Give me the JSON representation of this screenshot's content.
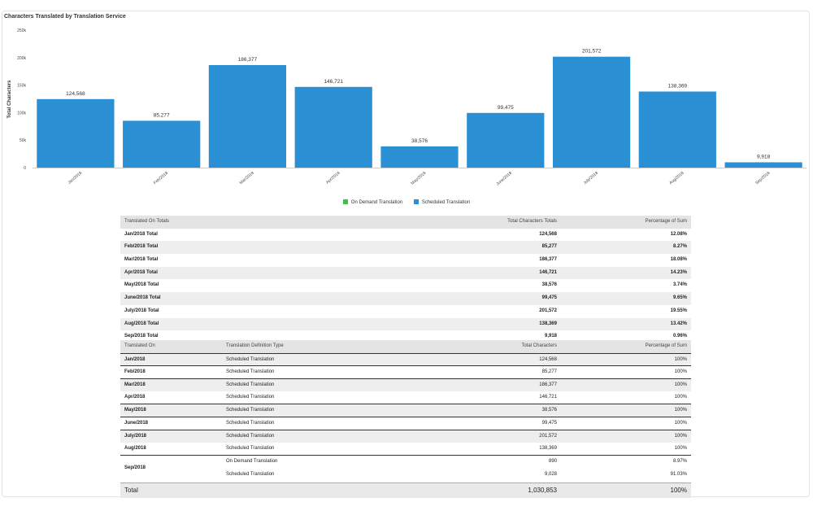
{
  "chart_data": {
    "type": "bar",
    "title": "Characters Translated by Translation Service",
    "ylabel": "Total Characters",
    "xlabel": "",
    "ylim": [
      0,
      250000
    ],
    "yticks": [
      "0",
      "50k",
      "100k",
      "150k",
      "200k",
      "250k"
    ],
    "categories": [
      "Jan/2018",
      "Feb/2018",
      "Mar/2018",
      "Apr/2018",
      "May/2018",
      "June/2018",
      "July/2018",
      "Aug/2018",
      "Sep/2018"
    ],
    "series": [
      {
        "name": "On Demand Translation",
        "color": "#3cc24a",
        "values": [
          0,
          0,
          0,
          0,
          0,
          0,
          0,
          0,
          890
        ]
      },
      {
        "name": "Scheduled Translation",
        "color": "#2b8fd3",
        "values": [
          124568,
          85277,
          186377,
          146721,
          38576,
          99475,
          201572,
          138369,
          9028
        ]
      }
    ],
    "data_labels": [
      "124,568",
      "85,277",
      "186,377",
      "146,721",
      "38,576",
      "99,475",
      "201,572",
      "138,369",
      "9,918"
    ],
    "legend": "bottom-center",
    "grid": false
  },
  "totals_table": {
    "headers": [
      "Translated On Totals",
      "Total Characters Totals",
      "Percentage of Sum"
    ],
    "rows": [
      {
        "label": "Jan/2018 Total",
        "total": "124,568",
        "pct": "12.08%"
      },
      {
        "label": "Feb/2018 Total",
        "total": "85,277",
        "pct": "8.27%"
      },
      {
        "label": "Mar/2018 Total",
        "total": "186,377",
        "pct": "18.08%"
      },
      {
        "label": "Apr/2018 Total",
        "total": "146,721",
        "pct": "14.23%"
      },
      {
        "label": "May/2018 Total",
        "total": "38,576",
        "pct": "3.74%"
      },
      {
        "label": "June/2018 Total",
        "total": "99,475",
        "pct": "9.65%"
      },
      {
        "label": "July/2018 Total",
        "total": "201,572",
        "pct": "19.55%"
      },
      {
        "label": "Aug/2018 Total",
        "total": "138,369",
        "pct": "13.42%"
      },
      {
        "label": "Sep/2018 Total",
        "total": "9,918",
        "pct": "0.96%"
      }
    ]
  },
  "detail_table": {
    "headers": [
      "Translated On",
      "Translation Definition Type",
      "Total Characters",
      "Percentage of Sum"
    ],
    "rows": [
      {
        "month": "Jan/2018",
        "type": "Scheduled Translation",
        "chars": "124,568",
        "pct": "100%"
      },
      {
        "month": "Feb/2018",
        "type": "Scheduled Translation",
        "chars": "85,277",
        "pct": "100%"
      },
      {
        "month": "Mar/2018",
        "type": "Scheduled Translation",
        "chars": "186,377",
        "pct": "100%"
      },
      {
        "month": "Apr/2018",
        "type": "Scheduled Translation",
        "chars": "146,721",
        "pct": "100%"
      },
      {
        "month": "May/2018",
        "type": "Scheduled Translation",
        "chars": "38,576",
        "pct": "100%"
      },
      {
        "month": "June/2018",
        "type": "Scheduled Translation",
        "chars": "99,475",
        "pct": "100%"
      },
      {
        "month": "July/2018",
        "type": "Scheduled Translation",
        "chars": "201,572",
        "pct": "100%"
      },
      {
        "month": "Aug/2018",
        "type": "Scheduled Translation",
        "chars": "138,369",
        "pct": "100%"
      }
    ],
    "sep": {
      "month": "Sep/2018",
      "rows": [
        {
          "type": "On Demand Translation",
          "chars": "890",
          "pct": "8.97%"
        },
        {
          "type": "Scheduled Translation",
          "chars": "9,028",
          "pct": "91.03%"
        }
      ]
    }
  },
  "grand_total": {
    "label": "Total",
    "chars": "1,030,853",
    "pct": "100%"
  }
}
